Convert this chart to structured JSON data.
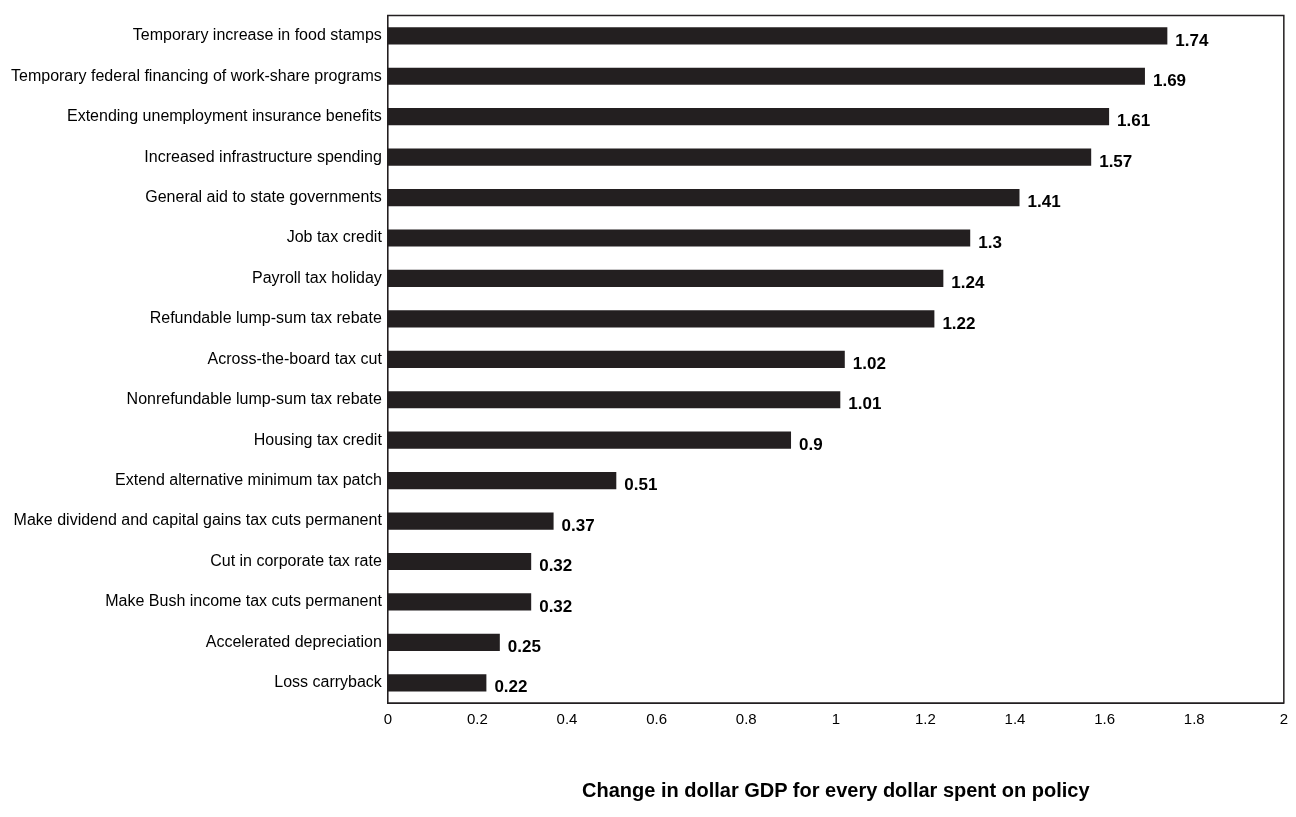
{
  "chart_data": {
    "type": "bar",
    "orientation": "horizontal",
    "xlabel": "Change in dollar GDP for every dollar spent on policy",
    "categories": [
      "Temporary increase in food stamps",
      "Temporary federal financing of work-share programs",
      "Extending unemployment insurance benefits",
      "Increased infrastructure spending",
      "General aid to state governments",
      "Job tax credit",
      "Payroll tax holiday",
      "Refundable lump-sum tax rebate",
      "Across-the-board tax cut",
      "Nonrefundable lump-sum tax rebate",
      "Housing tax credit",
      "Extend alternative minimum tax patch",
      "Make dividend and capital gains tax cuts permanent",
      "Cut in corporate tax rate",
      "Make Bush income tax cuts permanent",
      "Accelerated depreciation",
      "Loss carryback"
    ],
    "values": [
      1.74,
      1.69,
      1.61,
      1.57,
      1.41,
      1.3,
      1.24,
      1.22,
      1.02,
      1.01,
      0.9,
      0.51,
      0.37,
      0.32,
      0.32,
      0.25,
      0.22
    ],
    "color": "#231f20",
    "data_labels": true,
    "grid": false,
    "legend": false,
    "xlim": [
      0,
      2
    ],
    "xticks": [
      0,
      0.2,
      0.4,
      0.6,
      0.8,
      1,
      1.2,
      1.4,
      1.6,
      1.8,
      2
    ]
  }
}
